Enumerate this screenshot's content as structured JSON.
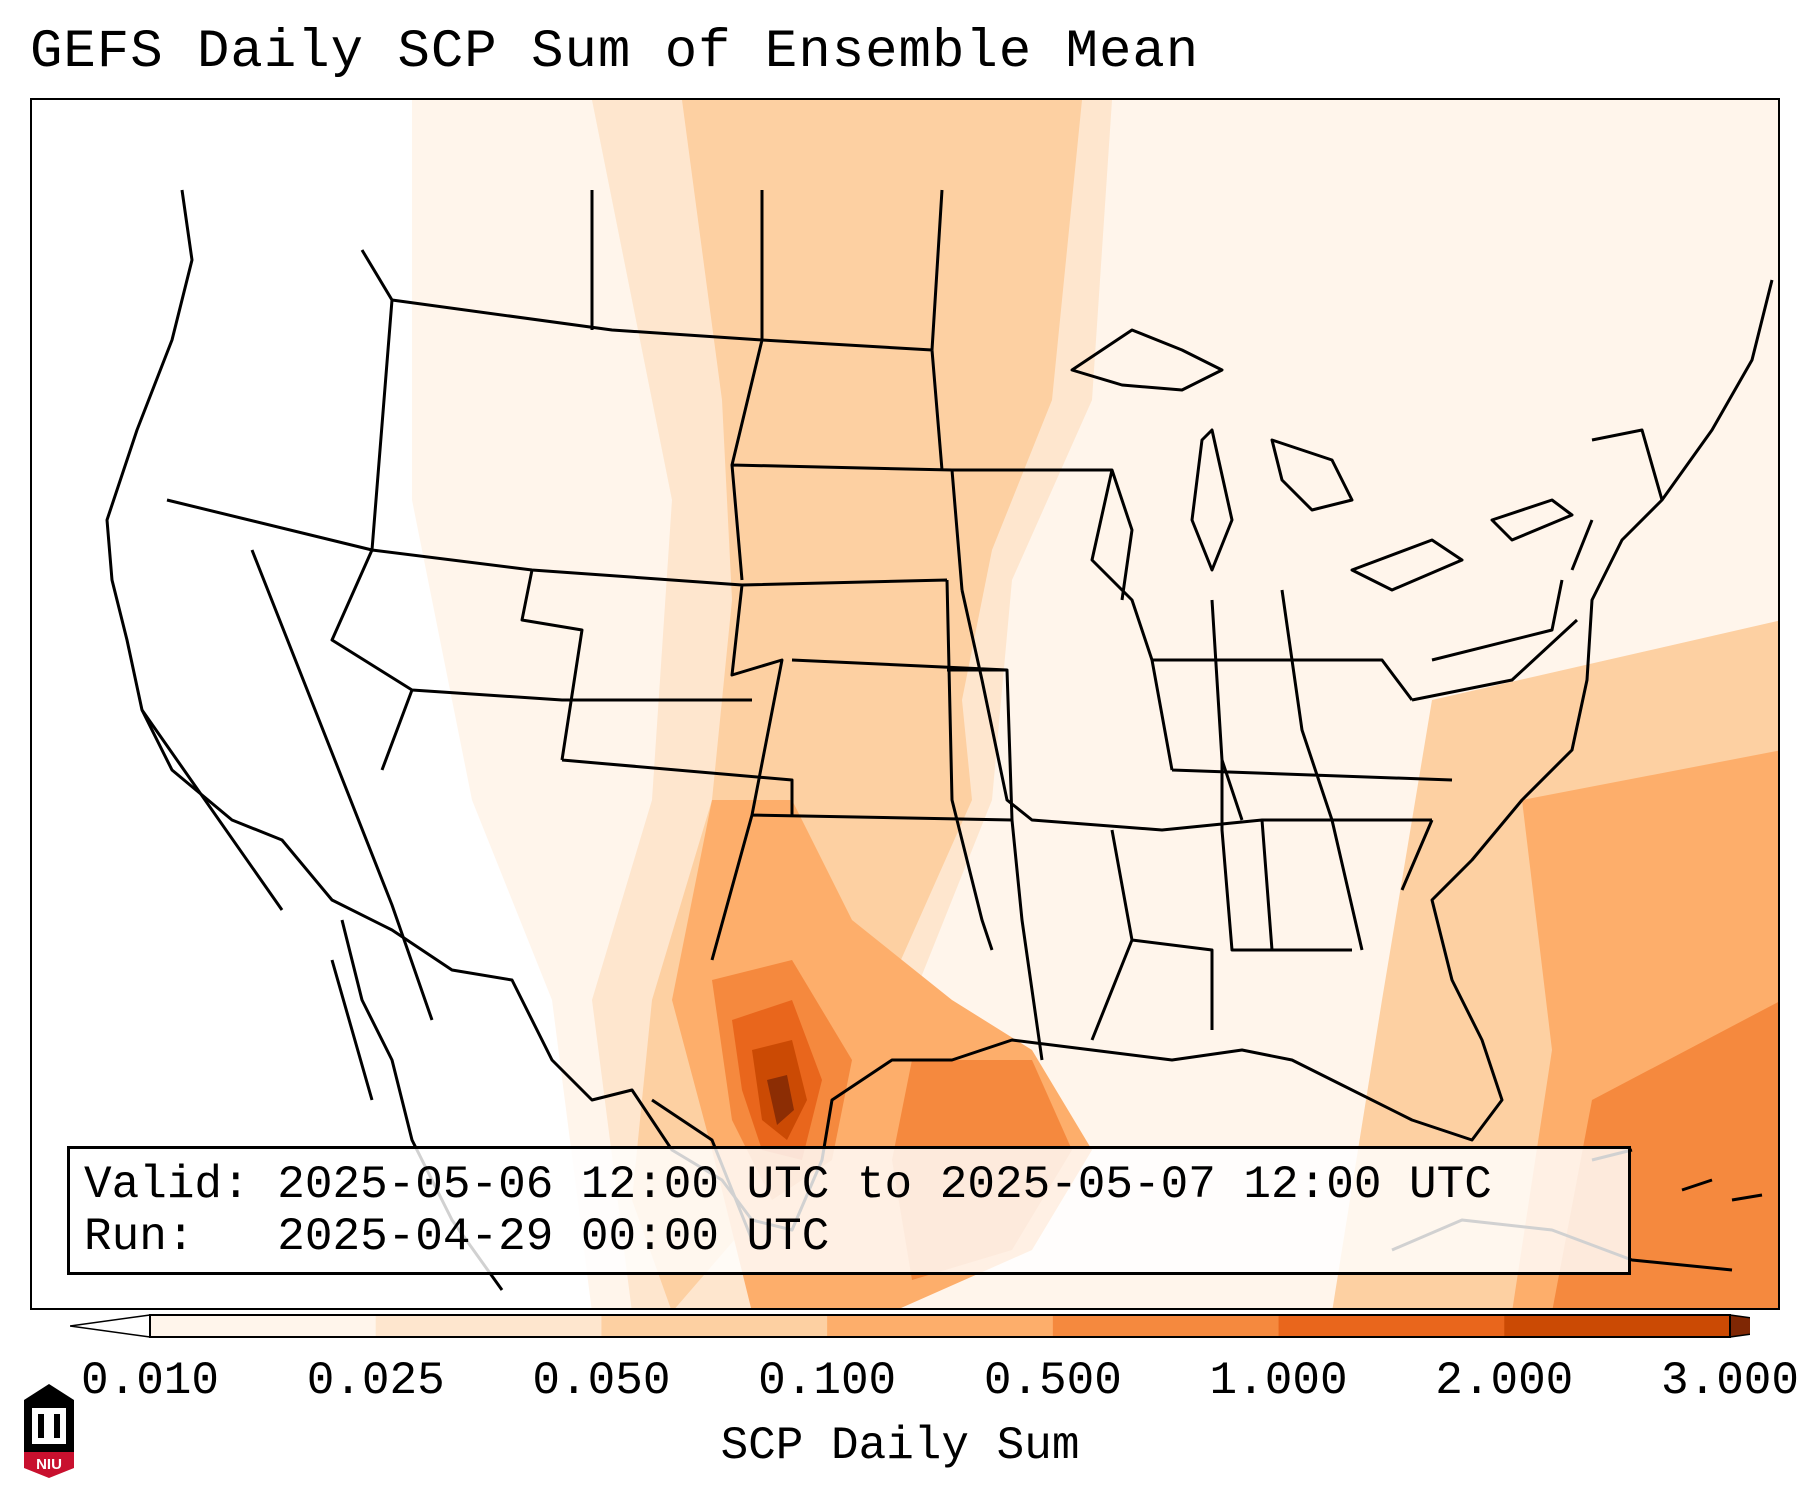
{
  "title": "GEFS Daily SCP Sum of Ensemble Mean",
  "info": {
    "valid_label": "Valid:",
    "valid_value": "2025-05-06 12:00 UTC to 2025-05-07 12:00 UTC",
    "run_label": "Run:",
    "run_value": "2025-04-29 00:00 UTC"
  },
  "colorbar": {
    "label": "SCP Daily Sum",
    "ticks": [
      "0.010",
      "0.025",
      "0.050",
      "0.100",
      "0.500",
      "1.000",
      "2.000",
      "3.000"
    ],
    "colors": [
      "#fff5eb",
      "#fee6ce",
      "#fdd0a2",
      "#fdae6b",
      "#f5893e",
      "#e9661c",
      "#cb4a04",
      "#8c2d04"
    ],
    "under_color": "#ffffff",
    "over_color": "#7f2704"
  },
  "logo": {
    "text": "NIU",
    "color": "#c8102e"
  }
}
